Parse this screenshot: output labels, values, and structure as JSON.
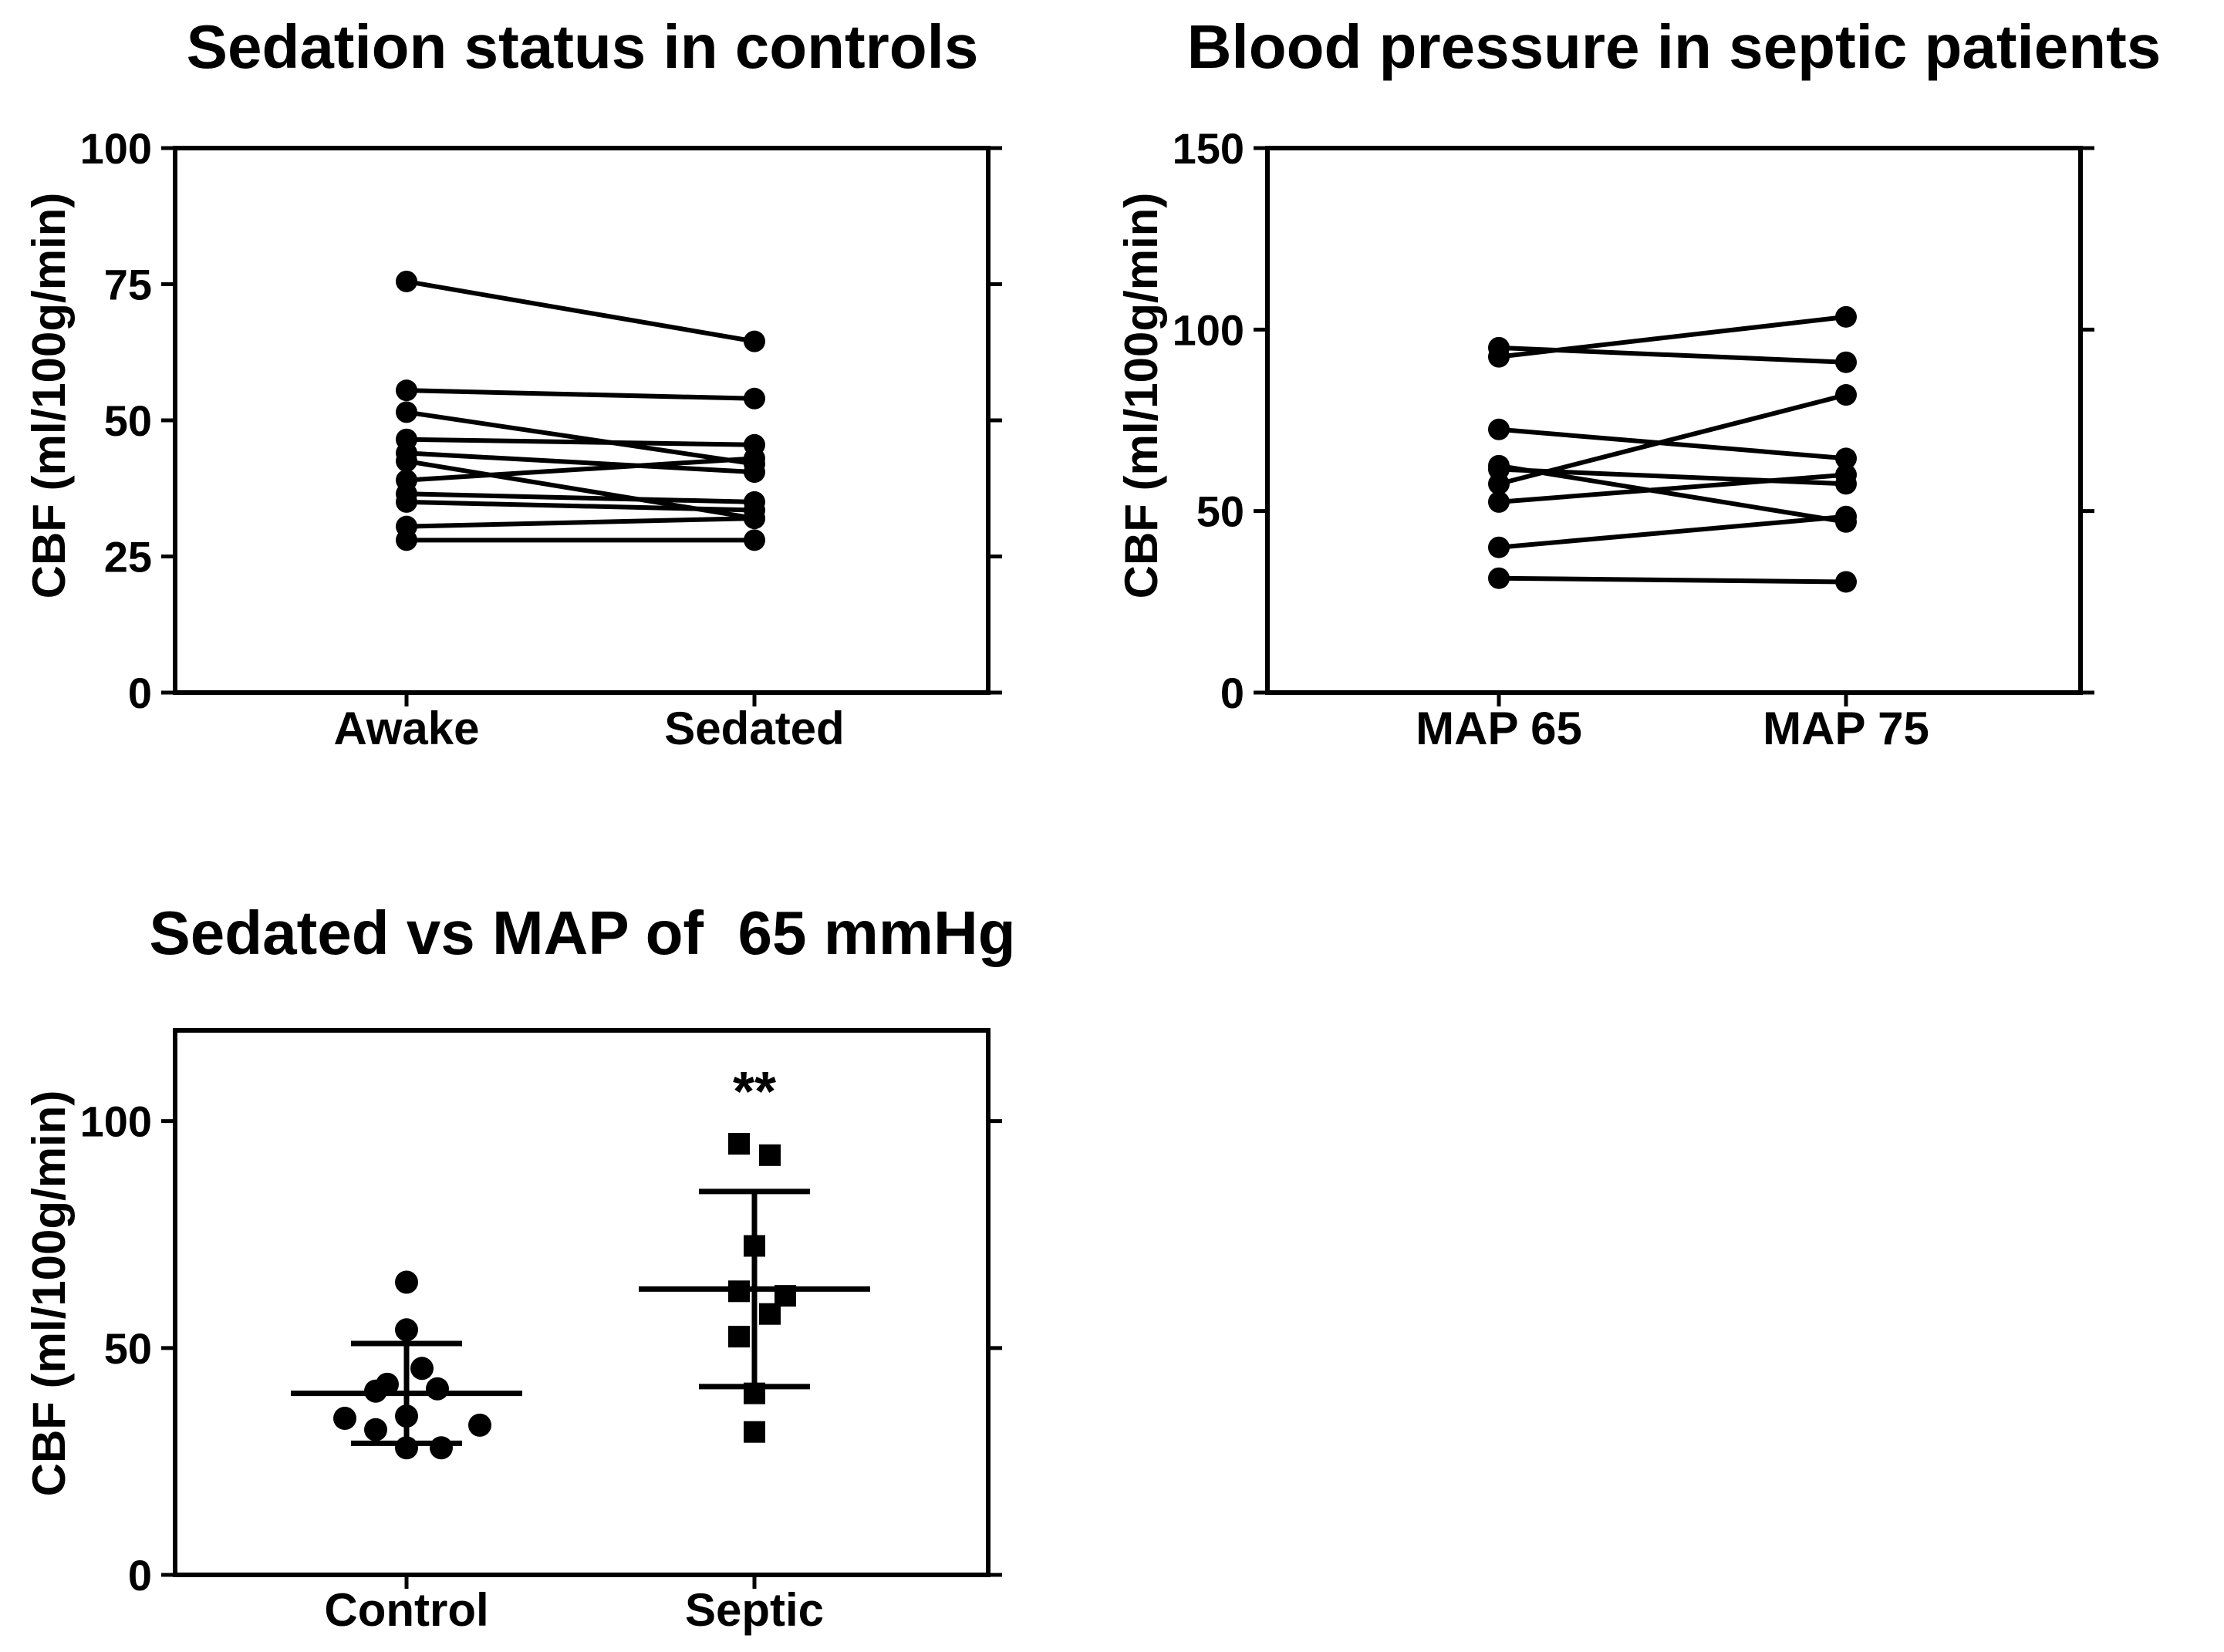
{
  "chart_data": [
    {
      "type": "line",
      "subtype": "paired-dot",
      "title": "Sedation status in controls",
      "ylabel": "CBF (ml/100g/min)",
      "xlabel": "",
      "categories": [
        "Awake",
        "Sedated"
      ],
      "ylim": [
        0,
        100
      ],
      "yticks": [
        "0",
        "25",
        "50",
        "75",
        "100"
      ],
      "ytick_values": [
        0,
        25,
        50,
        75,
        100
      ],
      "marker": "circle",
      "pairs": [
        [
          75.5,
          64.5
        ],
        [
          55.5,
          54.0
        ],
        [
          51.5,
          42.0
        ],
        [
          46.5,
          45.5
        ],
        [
          44.0,
          40.5
        ],
        [
          42.5,
          32.0
        ],
        [
          39.0,
          43.0
        ],
        [
          36.5,
          35.0
        ],
        [
          35.0,
          33.5
        ],
        [
          30.5,
          32.0
        ],
        [
          28.0,
          28.0
        ]
      ]
    },
    {
      "type": "line",
      "subtype": "paired-dot",
      "title": "Blood pressure in septic patients",
      "ylabel": "CBF (ml/100g/min)",
      "xlabel": "",
      "categories": [
        "MAP 65",
        "MAP 75"
      ],
      "ylim": [
        0,
        150
      ],
      "yticks": [
        "0",
        "50",
        "100",
        "150"
      ],
      "ytick_values": [
        0,
        50,
        100,
        150
      ],
      "marker": "circle",
      "pairs": [
        [
          95.0,
          91.0
        ],
        [
          92.5,
          103.5
        ],
        [
          72.5,
          64.5
        ],
        [
          62.5,
          47.0
        ],
        [
          61.5,
          57.5
        ],
        [
          57.5,
          82.0
        ],
        [
          52.5,
          60.0
        ],
        [
          40.0,
          48.5
        ],
        [
          31.5,
          30.5
        ]
      ]
    },
    {
      "type": "scatter",
      "subtype": "dot-plot-mean-sd",
      "title": "Sedated vs MAP of  65 mmHg",
      "ylabel": "CBF (ml/100g/min)",
      "xlabel": "",
      "categories": [
        "Control",
        "Septic"
      ],
      "ylim": [
        0,
        120
      ],
      "yticks": [
        "0",
        "50",
        "100"
      ],
      "ytick_values": [
        0,
        50,
        100
      ],
      "annotation": "**",
      "series": [
        {
          "name": "Control",
          "marker": "circle",
          "values": [
            64.5,
            54.0,
            45.5,
            42.0,
            41.0,
            40.5,
            35.0,
            34.5,
            33.0,
            32.0,
            28.0,
            28.0
          ],
          "mean": 40.0,
          "sd_low": 29.0,
          "sd_high": 51.0
        },
        {
          "name": "Septic",
          "marker": "square",
          "values": [
            95.0,
            92.5,
            72.5,
            62.5,
            61.5,
            57.5,
            52.5,
            40.0,
            31.5
          ],
          "mean": 63.0,
          "sd_low": 41.5,
          "sd_high": 84.5
        }
      ]
    }
  ]
}
